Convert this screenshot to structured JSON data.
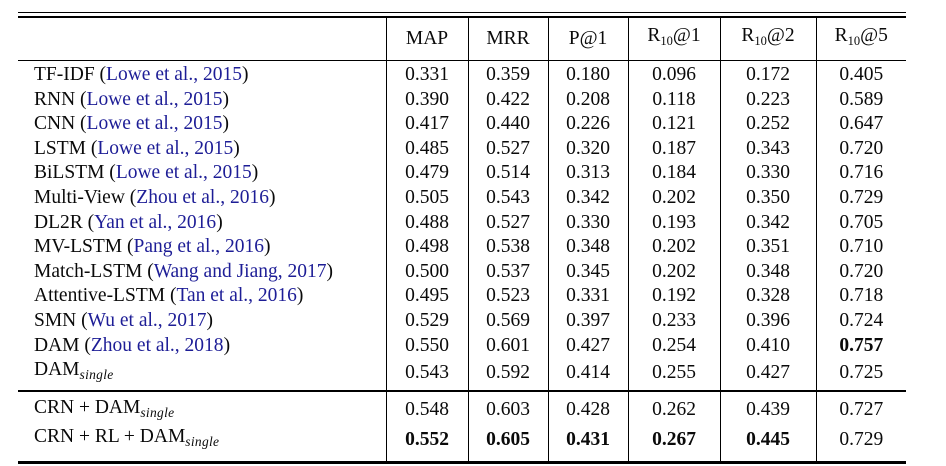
{
  "colors": {
    "citation": "#1d1d96",
    "text": "#0a0a0a",
    "rule": "#000000"
  },
  "table": {
    "columns": [
      {
        "text": "MAP"
      },
      {
        "text": "MRR"
      },
      {
        "text": "P@1"
      },
      {
        "text": "R",
        "sub": "10",
        "rest": "@1"
      },
      {
        "text": "R",
        "sub": "10",
        "rest": "@2"
      },
      {
        "text": "R",
        "sub": "10",
        "rest": "@5"
      }
    ],
    "rows": [
      {
        "label": [
          {
            "t": "TF-IDF ("
          },
          {
            "cite": "Lowe et al., 2015"
          },
          {
            "t": ")"
          }
        ],
        "values": [
          "0.331",
          "0.359",
          "0.180",
          "0.096",
          "0.172",
          "0.405"
        ],
        "bold": []
      },
      {
        "label": [
          {
            "t": "RNN ("
          },
          {
            "cite": "Lowe et al., 2015"
          },
          {
            "t": ")"
          }
        ],
        "values": [
          "0.390",
          "0.422",
          "0.208",
          "0.118",
          "0.223",
          "0.589"
        ],
        "bold": []
      },
      {
        "label": [
          {
            "t": "CNN ("
          },
          {
            "cite": "Lowe et al., 2015"
          },
          {
            "t": ")"
          }
        ],
        "values": [
          "0.417",
          "0.440",
          "0.226",
          "0.121",
          "0.252",
          "0.647"
        ],
        "bold": []
      },
      {
        "label": [
          {
            "t": "LSTM ("
          },
          {
            "cite": "Lowe et al., 2015"
          },
          {
            "t": ")"
          }
        ],
        "values": [
          "0.485",
          "0.527",
          "0.320",
          "0.187",
          "0.343",
          "0.720"
        ],
        "bold": []
      },
      {
        "label": [
          {
            "t": "BiLSTM ("
          },
          {
            "cite": "Lowe et al., 2015"
          },
          {
            "t": ")"
          }
        ],
        "values": [
          "0.479",
          "0.514",
          "0.313",
          "0.184",
          "0.330",
          "0.716"
        ],
        "bold": []
      },
      {
        "label": [
          {
            "t": "Multi-View ("
          },
          {
            "cite": "Zhou et al., 2016"
          },
          {
            "t": ")"
          }
        ],
        "values": [
          "0.505",
          "0.543",
          "0.342",
          "0.202",
          "0.350",
          "0.729"
        ],
        "bold": []
      },
      {
        "label": [
          {
            "t": "DL2R ("
          },
          {
            "cite": "Yan et al., 2016"
          },
          {
            "t": ")"
          }
        ],
        "values": [
          "0.488",
          "0.527",
          "0.330",
          "0.193",
          "0.342",
          "0.705"
        ],
        "bold": []
      },
      {
        "label": [
          {
            "t": "MV-LSTM ("
          },
          {
            "cite": "Pang et al., 2016"
          },
          {
            "t": ")"
          }
        ],
        "values": [
          "0.498",
          "0.538",
          "0.348",
          "0.202",
          "0.351",
          "0.710"
        ],
        "bold": []
      },
      {
        "label": [
          {
            "t": "Match-LSTM ("
          },
          {
            "cite": "Wang and Jiang, 2017"
          },
          {
            "t": ")"
          }
        ],
        "values": [
          "0.500",
          "0.537",
          "0.345",
          "0.202",
          "0.348",
          "0.720"
        ],
        "bold": []
      },
      {
        "label": [
          {
            "t": "Attentive-LSTM ("
          },
          {
            "cite": "Tan et al., 2016"
          },
          {
            "t": ")"
          }
        ],
        "values": [
          "0.495",
          "0.523",
          "0.331",
          "0.192",
          "0.328",
          "0.718"
        ],
        "bold": []
      },
      {
        "label": [
          {
            "t": "SMN ("
          },
          {
            "cite": "Wu et al., 2017"
          },
          {
            "t": ")"
          }
        ],
        "values": [
          "0.529",
          "0.569",
          "0.397",
          "0.233",
          "0.396",
          "0.724"
        ],
        "bold": []
      },
      {
        "label": [
          {
            "t": "DAM ("
          },
          {
            "cite": "Zhou et al., 2018"
          },
          {
            "t": ")"
          }
        ],
        "values": [
          "0.550",
          "0.601",
          "0.427",
          "0.254",
          "0.410",
          "0.757"
        ],
        "bold": [
          5
        ]
      },
      {
        "label": [
          {
            "t": "DAM"
          },
          {
            "sub": "single"
          }
        ],
        "values": [
          "0.543",
          "0.592",
          "0.414",
          "0.255",
          "0.427",
          "0.725"
        ],
        "bold": []
      }
    ],
    "ours_rows": [
      {
        "label": [
          {
            "t": "CRN + DAM"
          },
          {
            "sub": "single"
          }
        ],
        "values": [
          "0.548",
          "0.603",
          "0.428",
          "0.262",
          "0.439",
          "0.727"
        ],
        "bold": []
      },
      {
        "label": [
          {
            "t": "CRN + RL + DAM"
          },
          {
            "sub": "single"
          }
        ],
        "values": [
          "0.552",
          "0.605",
          "0.431",
          "0.267",
          "0.445",
          "0.729"
        ],
        "bold": [
          0,
          1,
          2,
          3,
          4
        ]
      }
    ]
  }
}
